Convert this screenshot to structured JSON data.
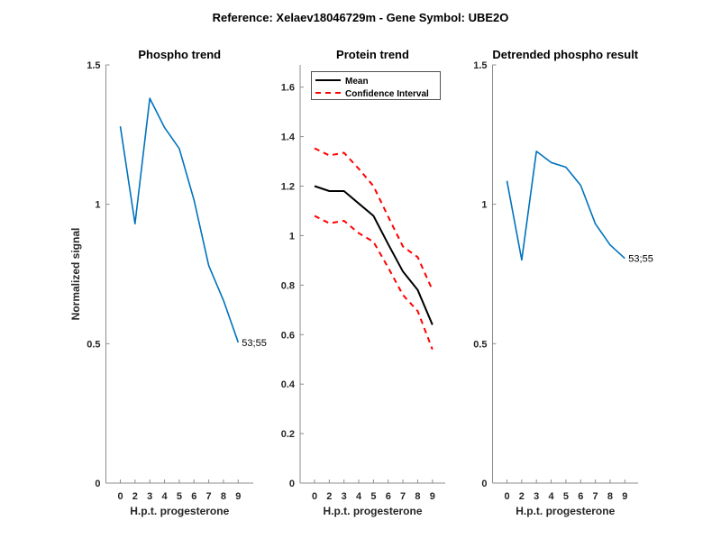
{
  "chart_data": {
    "suptitle": "Reference:  Xelaev18046729m - Gene Symbol:  UBE2O",
    "panels": [
      {
        "type": "line",
        "title": "Phospho trend",
        "xlabel": "H.p.t. progesterone",
        "ylabel": "Normalized signal",
        "categories": [
          "0",
          "2",
          "3",
          "4",
          "5",
          "6",
          "7",
          "8",
          "9"
        ],
        "ylim": [
          0,
          1.5
        ],
        "yticks": [
          "0",
          "0.5",
          "1",
          "1.5"
        ],
        "ytick_values": [
          0,
          0.5,
          1,
          1.5
        ],
        "series": [
          {
            "name": "53;55",
            "color": "#0072bd",
            "values": [
              1.28,
              0.93,
              1.38,
              1.275,
              1.2,
              1.015,
              0.78,
              0.655,
              0.505
            ]
          }
        ],
        "annotation": "53;55"
      },
      {
        "type": "line",
        "title": "Protein trend",
        "xlabel": "H.p.t. progesterone",
        "categories": [
          "0",
          "2",
          "3",
          "4",
          "5",
          "6",
          "7",
          "8",
          "9"
        ],
        "ylim": [
          0,
          1.69
        ],
        "yticks": [
          "0",
          "0.2",
          "0.4",
          "0.6",
          "0.8",
          "1",
          "1.2",
          "1.4",
          "1.6"
        ],
        "ytick_values": [
          0,
          0.2,
          0.4,
          0.6,
          0.8,
          1,
          1.2,
          1.4,
          1.6
        ],
        "legend": {
          "position": "top-left",
          "entries": [
            "Mean",
            "Confidence Interval"
          ]
        },
        "series": [
          {
            "name": "Mean",
            "color": "#000000",
            "style": "solid",
            "values": [
              1.2,
              1.18,
              1.18,
              1.13,
              1.08,
              0.965,
              0.855,
              0.78,
              0.64
            ]
          },
          {
            "name": "Confidence Interval (upper)",
            "color": "#ff0000",
            "style": "dashed",
            "values": [
              1.353,
              1.324,
              1.335,
              1.27,
              1.2,
              1.076,
              0.956,
              0.913,
              0.78
            ]
          },
          {
            "name": "Confidence Interval (lower)",
            "color": "#ff0000",
            "style": "dashed",
            "values": [
              1.08,
              1.05,
              1.06,
              1.01,
              0.975,
              0.87,
              0.76,
              0.695,
              0.54
            ]
          }
        ]
      },
      {
        "type": "line",
        "title": "Detrended phospho result",
        "xlabel": "H.p.t. progesterone",
        "categories": [
          "0",
          "2",
          "3",
          "4",
          "5",
          "6",
          "7",
          "8",
          "9"
        ],
        "ylim": [
          0,
          1.5
        ],
        "yticks": [
          "0",
          "0.5",
          "1",
          "1.5"
        ],
        "ytick_values": [
          0,
          0.5,
          1,
          1.5
        ],
        "series": [
          {
            "name": "53;55",
            "color": "#0072bd",
            "values": [
              1.084,
              0.8,
              1.19,
              1.15,
              1.133,
              1.068,
              0.93,
              0.854,
              0.806
            ]
          }
        ],
        "annotation": "53;55"
      }
    ]
  }
}
